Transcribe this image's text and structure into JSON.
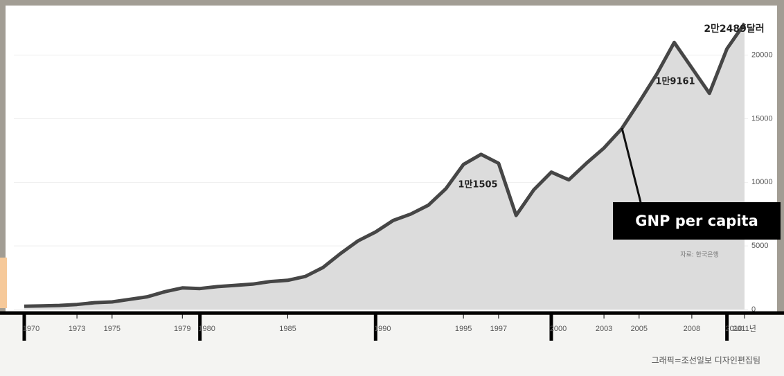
{
  "chart_data": {
    "type": "area",
    "x": [
      1970,
      1971,
      1972,
      1973,
      1974,
      1975,
      1976,
      1977,
      1978,
      1979,
      1980,
      1981,
      1982,
      1983,
      1984,
      1985,
      1986,
      1987,
      1988,
      1989,
      1990,
      1991,
      1992,
      1993,
      1994,
      1995,
      1996,
      1997,
      1998,
      1999,
      2000,
      2001,
      2002,
      2003,
      2004,
      2005,
      2006,
      2007,
      2008,
      2009,
      2010,
      2011
    ],
    "series": [
      {
        "name": "GNP per capita",
        "color": "#464646",
        "values": [
          255,
          290,
          320,
          400,
          540,
          600,
          800,
          1000,
          1400,
          1700,
          1650,
          1800,
          1900,
          2000,
          2200,
          2300,
          2600,
          3300,
          4400,
          5400,
          6100,
          7000,
          7500,
          8200,
          9500,
          11400,
          12200,
          11500,
          7400,
          9400,
          10800,
          10200,
          11500,
          12700,
          14200,
          16300,
          18500,
          21000,
          19000,
          17000,
          20500,
          22489
        ]
      }
    ],
    "fill_color": "#dcdcdc",
    "xlim": [
      1970,
      2011
    ],
    "xticks": [
      1970,
      1973,
      1975,
      1979,
      1980,
      1985,
      1990,
      1995,
      1997,
      2000,
      2003,
      2005,
      2008,
      2010,
      {
        "value": 2011,
        "label": "2011년"
      }
    ],
    "ylim": [
      0,
      24500
    ],
    "yticks": [
      0,
      5000,
      10000,
      15000,
      20000
    ],
    "grid": true,
    "annotations": [
      "2만2489달러",
      "1만9161",
      "1만1505"
    ],
    "source": "자료: 한국은행",
    "credit": "그래픽=조선일보 디자인편집팀"
  }
}
